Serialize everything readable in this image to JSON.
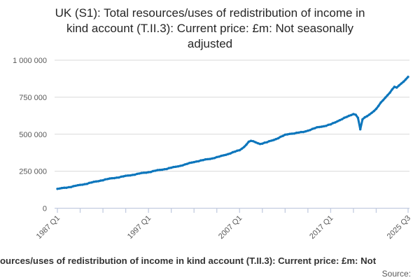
{
  "header": {
    "title_lines": [
      "UK (S1): Total resources/uses of redistribution of income in",
      "kind account (T.II.3): Current price: £m: Not seasonally",
      "adjusted"
    ]
  },
  "footer": {
    "caption_clipped": "ources/uses of redistribution of income in kind account (T.II.3): Current price: £m: Not",
    "source_label": "Source:"
  },
  "colors": {
    "series_line": "#0d76bc",
    "gridline": "#d9d9d9",
    "axis": "#c3cce0",
    "tick_text": "#595959",
    "title_text": "#262626"
  },
  "chart_data": {
    "type": "line",
    "title": "UK (S1): Total resources/uses of redistribution of income in kind account (T.II.3): Current price: £m: Not seasonally adjusted",
    "xlabel": "",
    "ylabel": "",
    "grid": true,
    "legend": "none",
    "y_axis": {
      "min": 0,
      "max": 1000000,
      "ticks": [
        {
          "value": 0,
          "label": "0"
        },
        {
          "value": 250000,
          "label": "250 000"
        },
        {
          "value": 500000,
          "label": "500 000"
        },
        {
          "value": 750000,
          "label": "750 000"
        },
        {
          "value": 1000000,
          "label": "1 000 000"
        }
      ]
    },
    "x_axis": {
      "start_period": "1987 Q1",
      "end_period": "2025 Q3",
      "total_quarters": 154,
      "minor_tick_step_quarters": 10,
      "labeled_ticks": [
        {
          "q": 0,
          "label": "1987 Q1"
        },
        {
          "q": 40,
          "label": "1997 Q1"
        },
        {
          "q": 80,
          "label": "2007 Q1"
        },
        {
          "q": 120,
          "label": "2017 Q1"
        },
        {
          "q": 154,
          "label": "2025 Q3"
        }
      ]
    },
    "series": [
      {
        "name": "Total resources/uses of redistribution of income in kind account, £m",
        "color": "#0d76bc",
        "points_are_estimates_read_from_plot": true,
        "anchor_points": [
          {
            "q": 0,
            "period": "1987 Q1",
            "value": 130000
          },
          {
            "q": 4,
            "period": "1988 Q1",
            "value": 140000
          },
          {
            "q": 8,
            "period": "1989 Q1",
            "value": 151000
          },
          {
            "q": 12,
            "period": "1990 Q1",
            "value": 163000
          },
          {
            "q": 16,
            "period": "1991 Q1",
            "value": 177000
          },
          {
            "q": 20,
            "period": "1992 Q1",
            "value": 191000
          },
          {
            "q": 24,
            "period": "1993 Q1",
            "value": 202000
          },
          {
            "q": 28,
            "period": "1994 Q1",
            "value": 212000
          },
          {
            "q": 32,
            "period": "1995 Q1",
            "value": 223000
          },
          {
            "q": 36,
            "period": "1996 Q1",
            "value": 234000
          },
          {
            "q": 40,
            "period": "1997 Q1",
            "value": 244000
          },
          {
            "q": 44,
            "period": "1998 Q1",
            "value": 256000
          },
          {
            "q": 48,
            "period": "1999 Q1",
            "value": 267000
          },
          {
            "q": 52,
            "period": "2000 Q1",
            "value": 280000
          },
          {
            "q": 56,
            "period": "2001 Q1",
            "value": 295000
          },
          {
            "q": 60,
            "period": "2002 Q1",
            "value": 313000
          },
          {
            "q": 64,
            "period": "2003 Q1",
            "value": 325000
          },
          {
            "q": 68,
            "period": "2004 Q1",
            "value": 337000
          },
          {
            "q": 72,
            "period": "2005 Q1",
            "value": 352000
          },
          {
            "q": 76,
            "period": "2006 Q1",
            "value": 372000
          },
          {
            "q": 80,
            "period": "2007 Q1",
            "value": 392000
          },
          {
            "q": 82,
            "period": "2007 Q3",
            "value": 415000
          },
          {
            "q": 84,
            "period": "2008 Q1",
            "value": 448000
          },
          {
            "q": 85,
            "period": "2008 Q2",
            "value": 455000
          },
          {
            "q": 87,
            "period": "2008 Q4",
            "value": 446000
          },
          {
            "q": 89,
            "period": "2009 Q2",
            "value": 435000
          },
          {
            "q": 92,
            "period": "2010 Q1",
            "value": 445000
          },
          {
            "q": 96,
            "period": "2011 Q1",
            "value": 468000
          },
          {
            "q": 99,
            "period": "2011 Q4",
            "value": 488000
          },
          {
            "q": 100,
            "period": "2012 Q1",
            "value": 495000
          },
          {
            "q": 102,
            "period": "2012 Q3",
            "value": 503000
          },
          {
            "q": 104,
            "period": "2013 Q1",
            "value": 506000
          },
          {
            "q": 108,
            "period": "2014 Q1",
            "value": 515000
          },
          {
            "q": 112,
            "period": "2015 Q1",
            "value": 535000
          },
          {
            "q": 114,
            "period": "2015 Q3",
            "value": 545000
          },
          {
            "q": 116,
            "period": "2016 Q1",
            "value": 552000
          },
          {
            "q": 118,
            "period": "2016 Q3",
            "value": 558000
          },
          {
            "q": 120,
            "period": "2017 Q1",
            "value": 566000
          },
          {
            "q": 122,
            "period": "2017 Q3",
            "value": 580000
          },
          {
            "q": 124,
            "period": "2018 Q1",
            "value": 596000
          },
          {
            "q": 126,
            "period": "2018 Q3",
            "value": 610000
          },
          {
            "q": 128,
            "period": "2019 Q1",
            "value": 622000
          },
          {
            "q": 130,
            "period": "2019 Q3",
            "value": 637000
          },
          {
            "q": 131,
            "period": "2019 Q4",
            "value": 633000
          },
          {
            "q": 132,
            "period": "2020 Q1",
            "value": 612000
          },
          {
            "q": 133,
            "period": "2020 Q2",
            "value": 532000
          },
          {
            "q": 134,
            "period": "2020 Q3",
            "value": 600000
          },
          {
            "q": 135,
            "period": "2020 Q4",
            "value": 612000
          },
          {
            "q": 136,
            "period": "2021 Q1",
            "value": 622000
          },
          {
            "q": 138,
            "period": "2021 Q3",
            "value": 645000
          },
          {
            "q": 140,
            "period": "2022 Q1",
            "value": 670000
          },
          {
            "q": 142,
            "period": "2022 Q3",
            "value": 712000
          },
          {
            "q": 144,
            "period": "2023 Q1",
            "value": 748000
          },
          {
            "q": 146,
            "period": "2023 Q3",
            "value": 782000
          },
          {
            "q": 148,
            "period": "2024 Q1",
            "value": 820000
          },
          {
            "q": 149,
            "period": "2024 Q2",
            "value": 813000
          },
          {
            "q": 150,
            "period": "2024 Q3",
            "value": 830000
          },
          {
            "q": 152,
            "period": "2025 Q1",
            "value": 856000
          },
          {
            "q": 153,
            "period": "2025 Q2",
            "value": 872000
          },
          {
            "q": 154,
            "period": "2025 Q3",
            "value": 886000
          }
        ]
      }
    ]
  }
}
